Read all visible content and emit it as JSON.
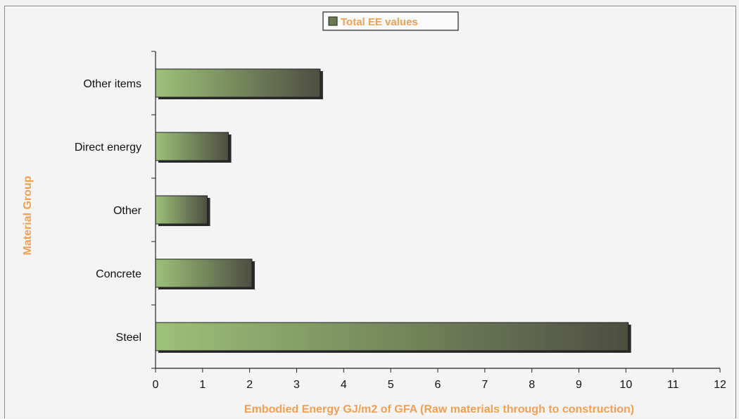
{
  "chart_data": {
    "type": "bar",
    "orientation": "horizontal",
    "categories": [
      "Steel",
      "Concrete",
      "Other",
      "Direct energy",
      "Other items"
    ],
    "series": [
      {
        "name": "Total EE values",
        "values": [
          10.05,
          2.05,
          1.1,
          1.55,
          3.5
        ]
      }
    ],
    "xlabel": "Embodied Energy GJ/m2 of GFA (Raw materials through to construction)",
    "ylabel": "Material Group",
    "xlim": [
      0,
      12
    ],
    "xticks": [
      "0",
      "1",
      "2",
      "3",
      "4",
      "5",
      "6",
      "7",
      "8",
      "9",
      "10",
      "11",
      "12"
    ],
    "grid": false,
    "legend_position": "top"
  },
  "colors": {
    "bar_start": "#9cc27a",
    "bar_end": "#4e4e40",
    "bar_edge": "#1e1e1e",
    "axis_title": "#f0a050"
  }
}
